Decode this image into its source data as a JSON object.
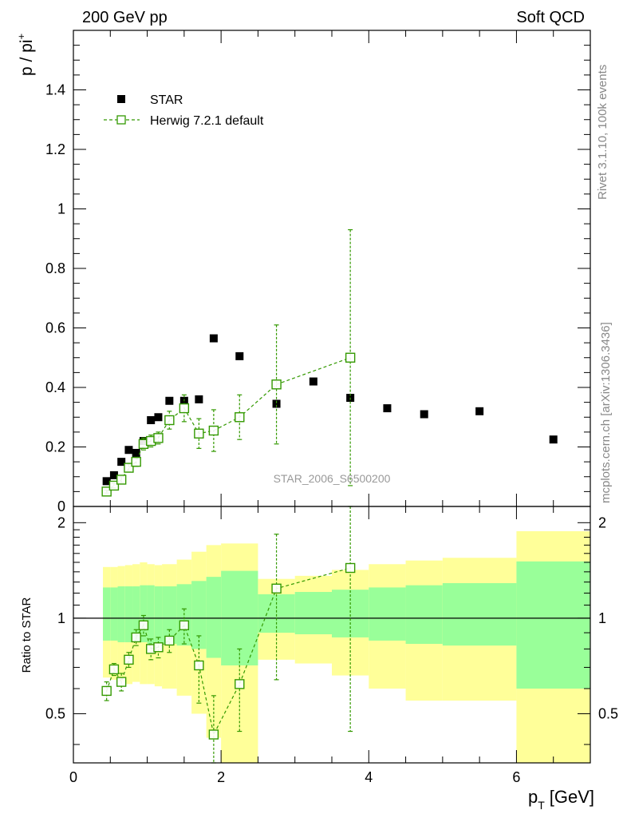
{
  "header": {
    "left": "200 GeV pp",
    "right": "Soft QCD"
  },
  "side_labels": {
    "rivet": "Rivet 3.1.10,  100k events",
    "mcplots": "mcplots.cern.ch [arXiv:1306.3436]"
  },
  "watermark": "STAR_2006_S6500200",
  "chart_data": [
    {
      "type": "scatter",
      "panel": "main",
      "ylabel": "p / pi",
      "ylabel_sup": "+",
      "xlim": [
        0,
        7.0
      ],
      "ylim": [
        0,
        1.6
      ],
      "yticks": [
        0,
        0.2,
        0.4,
        0.6,
        0.8,
        1,
        1.2,
        1.4
      ],
      "ytick_labels": [
        "0",
        "0.2",
        "0.4",
        "0.6",
        "0.8",
        "1",
        "1.2",
        "1.4"
      ],
      "legend_position": "top-left",
      "series": [
        {
          "name": "STAR",
          "color": "#000000",
          "marker": "filled-square",
          "x": [
            0.45,
            0.55,
            0.65,
            0.75,
            0.85,
            0.95,
            1.05,
            1.15,
            1.3,
            1.5,
            1.7,
            1.9,
            2.25,
            2.75,
            3.25,
            3.75,
            4.25,
            4.75,
            5.5,
            6.5
          ],
          "y": [
            0.085,
            0.105,
            0.15,
            0.19,
            0.18,
            0.22,
            0.29,
            0.3,
            0.355,
            0.355,
            0.36,
            0.565,
            0.505,
            0.345,
            0.42,
            0.365,
            0.33,
            0.31,
            0.32,
            0.225
          ]
        },
        {
          "name": "Herwig 7.2.1 default",
          "color": "#339900",
          "marker": "open-square",
          "line": "dashed",
          "x": [
            0.45,
            0.55,
            0.65,
            0.75,
            0.85,
            0.95,
            1.05,
            1.15,
            1.3,
            1.5,
            1.7,
            1.9,
            2.25,
            2.75,
            3.75
          ],
          "y": [
            0.05,
            0.07,
            0.09,
            0.13,
            0.15,
            0.21,
            0.22,
            0.23,
            0.29,
            0.33,
            0.245,
            0.255,
            0.3,
            0.41,
            0.5
          ],
          "yerr": [
            0.005,
            0.008,
            0.01,
            0.012,
            0.015,
            0.02,
            0.02,
            0.02,
            0.03,
            0.045,
            0.05,
            0.07,
            0.075,
            0.2,
            0.43
          ]
        }
      ]
    },
    {
      "type": "scatter",
      "panel": "ratio",
      "ylabel": "Ratio to STAR",
      "xlabel": "p",
      "xlabel_sub": "T",
      "xlabel_unit": "[GeV]",
      "xlim": [
        0,
        7.0
      ],
      "ylim": [
        0.35,
        2.25
      ],
      "xticks": [
        0,
        2,
        4,
        6
      ],
      "xtick_labels": [
        "0",
        "2",
        "4",
        "6"
      ],
      "yticks": [
        0.5,
        1,
        2
      ],
      "ytick_labels": [
        "0.5",
        "1",
        "2"
      ],
      "bands": {
        "edges": [
          0.4,
          0.5,
          0.6,
          0.7,
          0.8,
          0.9,
          1.0,
          1.1,
          1.2,
          1.4,
          1.6,
          1.8,
          2.0,
          2.5,
          3.0,
          3.5,
          4.0,
          4.5,
          5.0,
          6.0,
          7.0
        ],
        "inner_lo": [
          0.85,
          0.85,
          0.84,
          0.84,
          0.84,
          0.84,
          0.83,
          0.84,
          0.83,
          0.82,
          0.8,
          0.75,
          0.71,
          0.9,
          0.89,
          0.87,
          0.85,
          0.83,
          0.82,
          0.6
        ],
        "inner_hi": [
          1.25,
          1.25,
          1.26,
          1.26,
          1.26,
          1.27,
          1.27,
          1.26,
          1.26,
          1.28,
          1.31,
          1.35,
          1.41,
          1.19,
          1.21,
          1.23,
          1.25,
          1.27,
          1.29,
          1.51
        ],
        "outer_lo": [
          0.65,
          0.64,
          0.63,
          0.62,
          0.63,
          0.62,
          0.62,
          0.61,
          0.6,
          0.57,
          0.5,
          0.42,
          0.35,
          0.74,
          0.72,
          0.66,
          0.6,
          0.55,
          0.55,
          0.35
        ],
        "outer_hi": [
          1.45,
          1.45,
          1.46,
          1.47,
          1.48,
          1.5,
          1.48,
          1.47,
          1.48,
          1.53,
          1.62,
          1.7,
          1.72,
          1.33,
          1.36,
          1.42,
          1.48,
          1.52,
          1.55,
          1.88
        ],
        "inner_color": "#99ff99",
        "outer_color": "#ffff99"
      },
      "reference_line": 1,
      "series": [
        {
          "name": "Herwig 7.2.1 default",
          "color": "#339900",
          "marker": "open-square",
          "line": "dashed",
          "x": [
            0.45,
            0.55,
            0.65,
            0.75,
            0.85,
            0.95,
            1.05,
            1.15,
            1.3,
            1.5,
            1.7,
            1.9,
            2.25,
            2.75,
            3.75
          ],
          "y": [
            0.59,
            0.69,
            0.63,
            0.74,
            0.87,
            0.95,
            0.8,
            0.81,
            0.85,
            0.95,
            0.71,
            0.43,
            0.62,
            1.24,
            1.44
          ],
          "yerr": [
            0.04,
            0.03,
            0.04,
            0.04,
            0.05,
            0.07,
            0.06,
            0.06,
            0.07,
            0.12,
            0.17,
            0.14,
            0.18,
            0.6,
            1.0
          ]
        }
      ]
    }
  ]
}
